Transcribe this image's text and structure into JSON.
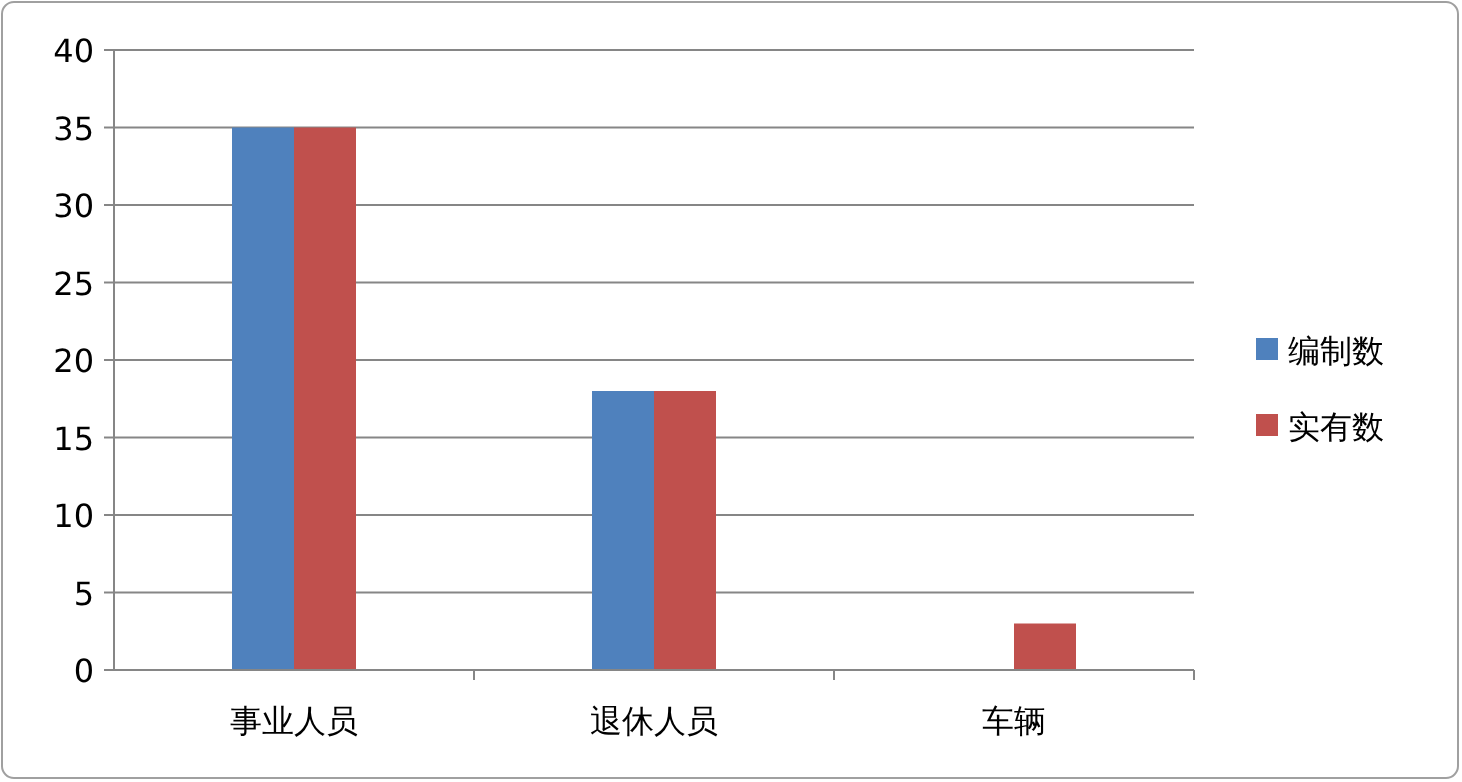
{
  "chart_data": {
    "type": "bar",
    "categories": [
      "事业人员",
      "退休人员",
      "车辆"
    ],
    "series": [
      {
        "name": "编制数",
        "color": "#4f81bd",
        "values": [
          35,
          18,
          0
        ]
      },
      {
        "name": "实有数",
        "color": "#c0504d",
        "values": [
          35,
          18,
          3
        ]
      }
    ],
    "ylim": [
      0,
      40
    ],
    "yticks": [
      0,
      5,
      10,
      15,
      20,
      25,
      30,
      35,
      40
    ],
    "grid": "y",
    "legend": "right"
  }
}
